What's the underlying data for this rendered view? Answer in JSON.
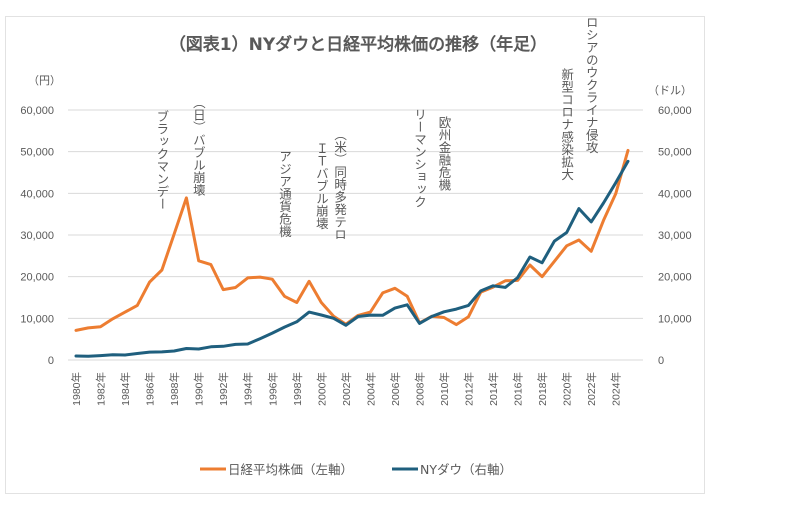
{
  "chart_data": {
    "type": "line",
    "title": "（図表1）NYダウと日経平均株価の推移（年足）",
    "left_axis": {
      "unit_label": "（円）",
      "ticks": [
        "0",
        "10,000",
        "20,000",
        "30,000",
        "40,000",
        "50,000",
        "60,000"
      ],
      "range": [
        0,
        60000
      ]
    },
    "right_axis": {
      "unit_label": "（ドル）",
      "ticks": [
        "0",
        "10,000",
        "20,000",
        "30,000",
        "40,000",
        "50,000",
        "60,000"
      ],
      "range": [
        0,
        60000
      ]
    },
    "grid": true,
    "x": [
      1980,
      1981,
      1982,
      1983,
      1984,
      1985,
      1986,
      1987,
      1988,
      1989,
      1990,
      1991,
      1992,
      1993,
      1994,
      1995,
      1996,
      1997,
      1998,
      1999,
      2000,
      2001,
      2002,
      2003,
      2004,
      2005,
      2006,
      2007,
      2008,
      2009,
      2010,
      2011,
      2012,
      2013,
      2014,
      2015,
      2016,
      2017,
      2018,
      2019,
      2020,
      2021,
      2022,
      2023,
      2024,
      2025
    ],
    "x_tick_labels": [
      "1980年",
      "1982年",
      "1984年",
      "1986年",
      "1988年",
      "1990年",
      "1992年",
      "1994年",
      "1996年",
      "1998年",
      "2000年",
      "2002年",
      "2004年",
      "2006年",
      "2008年",
      "2010年",
      "2012年",
      "2014年",
      "2016年",
      "2018年",
      "2020年",
      "2022年",
      "2024年"
    ],
    "series": [
      {
        "name": "日経平均株価（左軸）",
        "axis": "left",
        "color": "#ED7D31",
        "values": [
          7100,
          7700,
          8000,
          9900,
          11500,
          13100,
          18700,
          21600,
          30200,
          38900,
          23800,
          22900,
          16900,
          17400,
          19700,
          19900,
          19400,
          15300,
          13800,
          18900,
          13800,
          10500,
          8600,
          10700,
          11500,
          16100,
          17200,
          15300,
          8900,
          10500,
          10200,
          8500,
          10400,
          16300,
          17500,
          19000,
          19100,
          22800,
          20000,
          23700,
          27400,
          28800,
          26100,
          33500,
          39900,
          50300
        ]
      },
      {
        "name": "NYダウ（右軸）",
        "axis": "right",
        "color": "#1F5F7E",
        "values": [
          960,
          880,
          1050,
          1260,
          1210,
          1550,
          1900,
          1940,
          2170,
          2750,
          2630,
          3170,
          3300,
          3750,
          3830,
          5120,
          6450,
          7900,
          9180,
          11500,
          10790,
          10020,
          8340,
          10450,
          10780,
          10720,
          12460,
          13260,
          8780,
          10430,
          11580,
          12220,
          13100,
          16580,
          17820,
          17430,
          19760,
          24720,
          23330,
          28540,
          30610,
          36340,
          33150,
          37690,
          42540,
          47700
        ]
      }
    ],
    "annotations": [
      {
        "text": "ブラックマンデー",
        "year": 1987
      },
      {
        "text": "（日）バブル崩壊",
        "year": 1989
      },
      {
        "text": "アジア通貨危機",
        "year": 1997
      },
      {
        "text": "ＩＴバブル崩壊",
        "year": 2000
      },
      {
        "text": "（米）同時多発テロ",
        "year": 2001
      },
      {
        "text": "リーマンショック",
        "year": 2008
      },
      {
        "text": "欧州金融危機",
        "year": 2010
      },
      {
        "text": "新型コロナ感染拡大",
        "year": 2020
      },
      {
        "text": "ロシアのウクライナ侵攻",
        "year": 2022
      }
    ],
    "legend_position": "bottom"
  }
}
